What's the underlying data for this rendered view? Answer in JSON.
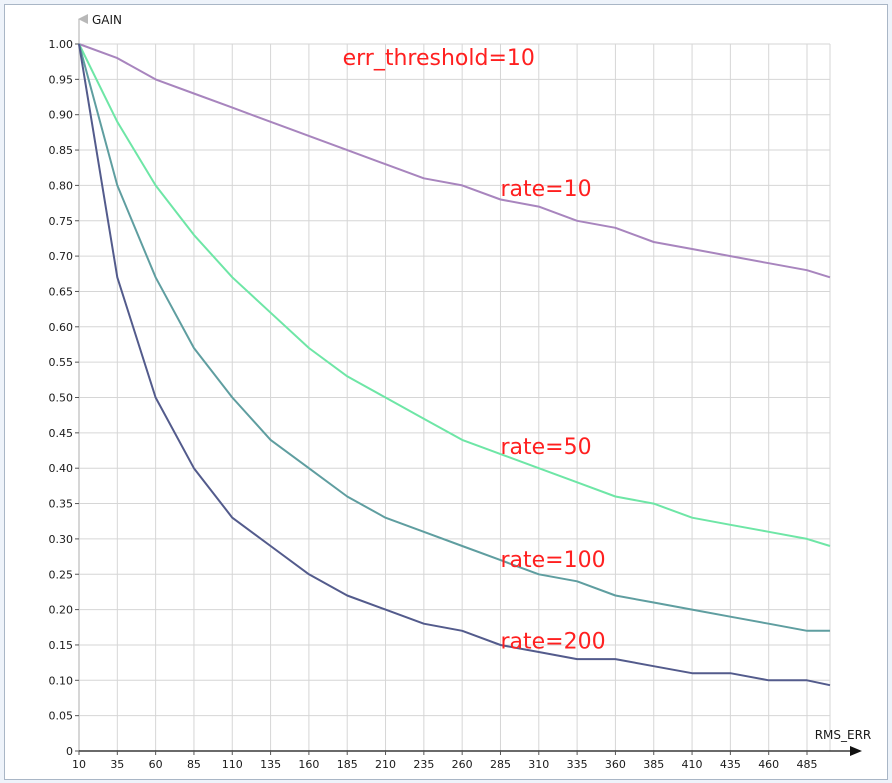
{
  "chart_data": {
    "type": "line",
    "xlabel": "RMS_ERR",
    "ylabel": "GAIN",
    "xlim": [
      10,
      500
    ],
    "ylim": [
      0,
      1.0
    ],
    "x_ticks": [
      10,
      35,
      60,
      85,
      110,
      135,
      160,
      185,
      210,
      235,
      260,
      285,
      310,
      335,
      360,
      385,
      410,
      435,
      460,
      485
    ],
    "y_ticks": [
      0,
      0.05,
      0.1,
      0.15,
      0.2,
      0.25,
      0.3,
      0.35,
      0.4,
      0.45,
      0.5,
      0.55,
      0.6,
      0.65,
      0.7,
      0.75,
      0.8,
      0.85,
      0.9,
      0.95,
      1.0
    ],
    "y_tick_labels": [
      "0",
      "0.05",
      "0.10",
      "0.15",
      "0.20",
      "0.25",
      "0.30",
      "0.35",
      "0.40",
      "0.45",
      "0.50",
      "0.55",
      "0.60",
      "0.65",
      "0.70",
      "0.75",
      "0.80",
      "0.85",
      "0.90",
      "0.95",
      "1.00"
    ],
    "grid": true,
    "x": [
      10,
      35,
      60,
      85,
      110,
      135,
      160,
      185,
      210,
      235,
      260,
      285,
      310,
      335,
      360,
      385,
      410,
      435,
      460,
      485,
      500
    ],
    "series": [
      {
        "name": "rate=10",
        "color": "#a885be",
        "values": [
          1.0,
          0.98,
          0.95,
          0.93,
          0.91,
          0.89,
          0.87,
          0.85,
          0.83,
          0.81,
          0.8,
          0.78,
          0.77,
          0.75,
          0.74,
          0.72,
          0.71,
          0.7,
          0.69,
          0.68,
          0.67
        ]
      },
      {
        "name": "rate=50",
        "color": "#6ee6a6",
        "values": [
          1.0,
          0.89,
          0.8,
          0.73,
          0.67,
          0.62,
          0.57,
          0.53,
          0.5,
          0.47,
          0.44,
          0.42,
          0.4,
          0.38,
          0.36,
          0.35,
          0.33,
          0.32,
          0.31,
          0.3,
          0.29
        ]
      },
      {
        "name": "rate=100",
        "color": "#5f9ea0",
        "values": [
          1.0,
          0.8,
          0.67,
          0.57,
          0.5,
          0.44,
          0.4,
          0.36,
          0.33,
          0.31,
          0.29,
          0.27,
          0.25,
          0.24,
          0.22,
          0.21,
          0.2,
          0.19,
          0.18,
          0.17,
          0.17
        ]
      },
      {
        "name": "rate=200",
        "color": "#535b8c",
        "values": [
          1.0,
          0.67,
          0.5,
          0.4,
          0.33,
          0.29,
          0.25,
          0.22,
          0.2,
          0.18,
          0.17,
          0.15,
          0.14,
          0.13,
          0.13,
          0.12,
          0.11,
          0.11,
          0.1,
          0.1,
          0.093
        ]
      }
    ],
    "annotations": [
      {
        "text": "err_threshold=10",
        "x": 182,
        "y": 0.97,
        "color": "#ff2020"
      },
      {
        "text": "rate=10",
        "x": 285,
        "y": 0.785,
        "color": "#ff2020"
      },
      {
        "text": "rate=50",
        "x": 285,
        "y": 0.42,
        "color": "#ff2020"
      },
      {
        "text": "rate=100",
        "x": 285,
        "y": 0.26,
        "color": "#ff2020"
      },
      {
        "text": "rate=200",
        "x": 285,
        "y": 0.145,
        "color": "#ff2020"
      }
    ]
  }
}
